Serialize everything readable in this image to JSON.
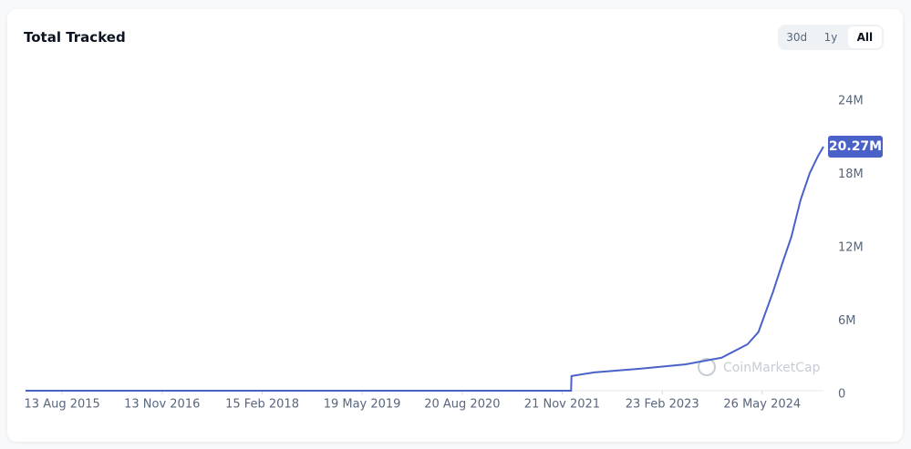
{
  "title": "Total Tracked",
  "range_buttons": [
    "30d",
    "1y",
    "All"
  ],
  "chart_data": {
    "type": "line",
    "watermark": "CoinMarketCap",
    "x": [
      "2015-02-26",
      "2022-01-01",
      "2022-01-03",
      "2022-04-17",
      "2022-11-12",
      "2023-06-08",
      "2023-11-22",
      "2024-03-20",
      "2024-05-09",
      "2024-07-15",
      "2024-08-26",
      "2024-10-07",
      "2024-11-18",
      "2024-12-30",
      "2025-02-06",
      "2025-03-03"
    ],
    "series": [
      {
        "name": "Total Tracked",
        "color": "#4a62c8",
        "values": [
          300000,
          300000,
          1500000,
          1800000,
          2100000,
          2450000,
          3000000,
          4100000,
          5100000,
          8400000,
          10700000,
          12900000,
          15900000,
          18100000,
          19500000,
          20270000
        ],
        "value_labels": [
          null,
          null,
          null,
          null,
          null,
          null,
          null,
          null,
          null,
          null,
          null,
          null,
          null,
          null,
          null,
          "20.27M"
        ]
      }
    ],
    "xlim": [
      "2015-02-26",
      "2025-03-03"
    ],
    "xticks": [
      {
        "value": "2015-08-13",
        "label": "13 Aug 2015"
      },
      {
        "value": "2016-11-13",
        "label": "13 Nov 2016"
      },
      {
        "value": "2018-02-15",
        "label": "15 Feb 2018"
      },
      {
        "value": "2019-05-19",
        "label": "19 May 2019"
      },
      {
        "value": "2020-08-20",
        "label": "20 Aug 2020"
      },
      {
        "value": "2021-11-21",
        "label": "21 Nov 2021"
      },
      {
        "value": "2023-02-23",
        "label": "23 Feb 2023"
      },
      {
        "value": "2024-05-26",
        "label": "26 May 2024"
      }
    ],
    "ylim": [
      0,
      24000000
    ],
    "yticks": [
      0,
      {
        "value": 6000000,
        "label": "6M"
      },
      {
        "value": 12000000,
        "label": "12M"
      },
      {
        "value": 18000000,
        "label": "18M"
      },
      {
        "value": 24000000,
        "label": "24M"
      }
    ],
    "grid": false
  }
}
